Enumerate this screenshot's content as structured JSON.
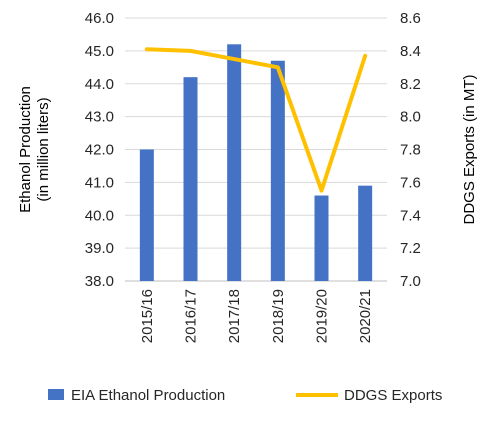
{
  "chart_data": {
    "type": "bar+line",
    "categories": [
      "2015/16",
      "2016/17",
      "2017/18",
      "2018/19",
      "2019/20",
      "2020/21"
    ],
    "series": [
      {
        "name": "EIA Ethanol Production",
        "type": "bar",
        "axis": "left",
        "color": "#4472C4",
        "values": [
          42.0,
          44.2,
          45.2,
          44.7,
          40.6,
          40.9
        ]
      },
      {
        "name": "DDGS Exports",
        "type": "line",
        "axis": "right",
        "color": "#FFC000",
        "values": [
          8.41,
          8.4,
          8.35,
          8.3,
          7.55,
          8.37
        ]
      }
    ],
    "ylabel": [
      "Ethanol Production",
      "(in million liters)"
    ],
    "ylabel_right": "DDGS Exports (in MT)",
    "ylim": [
      38.0,
      46.0
    ],
    "yticks": [
      "38.0",
      "39.0",
      "40.0",
      "41.0",
      "42.0",
      "43.0",
      "44.0",
      "45.0",
      "46.0"
    ],
    "ylim_right": [
      7.0,
      8.6
    ],
    "yticks_right": [
      "7.0",
      "7.2",
      "7.4",
      "7.6",
      "7.8",
      "8.0",
      "8.2",
      "8.4",
      "8.6"
    ],
    "grid": true,
    "legend_position": "bottom"
  }
}
